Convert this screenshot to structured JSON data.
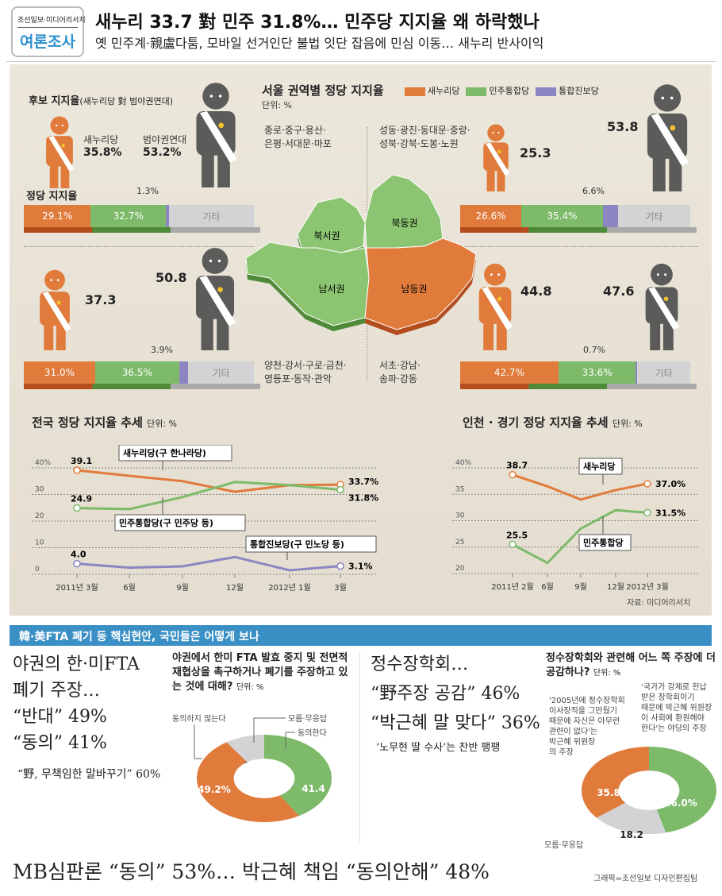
{
  "header": {
    "logo_top": "조선일보·미디어리서치",
    "logo_main": "여론조사",
    "title": "새누리 33.7 對 민주 31.8%… 민주당 지지율 왜 하락했나",
    "subtitle": "옛 민주계·親盧다툼, 모바일 선거인단 불법   잇단 잡음에 민심 이동… 새누리 반사이익"
  },
  "colors": {
    "saenuri": "#e07b3c",
    "minju": "#7dba6a",
    "jinbo": "#8b86c2",
    "other": "#d3d3d6",
    "figure_dark": "#5b5b59"
  },
  "candidate": {
    "title": "후보 지지율",
    "title_note": "(새누리당 對 범야권연대)",
    "saenuri_label": "새누리당",
    "saenuri_value": "35.8%",
    "opp_label": "범야권연대",
    "opp_value": "53.2%",
    "party_title": "정당 지지율"
  },
  "seoul": {
    "title": "서울 권역별 정당 지지율",
    "unit": "단위: %",
    "legend": [
      {
        "label": "새누리당"
      },
      {
        "label": "민주통합당"
      },
      {
        "label": "통합진보당"
      }
    ],
    "regions": {
      "nw": {
        "name": "북서권",
        "districts": [
          "종로·중구·용산·",
          "은평·서대문·마포"
        ],
        "saenuri_cand": "",
        "opp_cand": ""
      },
      "ne": {
        "name": "북동권",
        "districts": [
          "성동·광진·동대문·중랑·",
          "성북·강북·도봉·노원"
        ],
        "saenuri_cand": "25.3",
        "opp_cand": "53.8"
      },
      "sw": {
        "name": "남서권",
        "districts": [
          "양천·강서·구로·금천·",
          "영등포·동작·관악"
        ],
        "saenuri_cand": "37.3",
        "opp_cand": "50.8"
      },
      "se": {
        "name": "남동권",
        "districts": [
          "서초·강남·",
          "송파·강동"
        ],
        "saenuri_cand": "44.8",
        "opp_cand": "47.6"
      }
    },
    "bars": {
      "nw": {
        "saenuri": 29.1,
        "minju": 32.7,
        "jinbo": 1.3,
        "labels": [
          "29.1%",
          "32.7%",
          "1.3%",
          "기타"
        ]
      },
      "ne": {
        "saenuri": 26.6,
        "minju": 35.4,
        "jinbo": 6.6,
        "labels": [
          "26.6%",
          "35.4%",
          "6.6%",
          "기타"
        ]
      },
      "sw": {
        "saenuri": 31.0,
        "minju": 36.5,
        "jinbo": 3.9,
        "labels": [
          "31.0%",
          "36.5%",
          "3.9%",
          "기타"
        ]
      },
      "se": {
        "saenuri": 42.7,
        "minju": 33.6,
        "jinbo": 0.7,
        "labels": [
          "42.7%",
          "33.6%",
          "0.7%",
          "기타"
        ]
      }
    }
  },
  "chart_data": [
    {
      "type": "line",
      "title": "전국 정당 지지율 추세",
      "unit": "단위: %",
      "categories": [
        "2011년 3월",
        "6월",
        "9월",
        "12월",
        "2012년 1월",
        "3월"
      ],
      "ylim": [
        0,
        40
      ],
      "yticks": [
        "40%",
        "30",
        "20",
        "10",
        "0"
      ],
      "series": [
        {
          "name": "새누리당(구 한나라당)",
          "color": "#e07b3c",
          "values": [
            39.1,
            37.0,
            35.0,
            31.0,
            33.5,
            33.7
          ],
          "start_label": "39.1",
          "end_label": "33.7%"
        },
        {
          "name": "민주통합당(구 민주당 등)",
          "color": "#7dba6a",
          "values": [
            24.9,
            24.5,
            29.0,
            34.7,
            33.5,
            31.8
          ],
          "start_label": "24.9",
          "end_label": "31.8%"
        },
        {
          "name": "통합진보당(구 민노당 등)",
          "color": "#8b86c2",
          "values": [
            4.0,
            2.5,
            3.0,
            6.5,
            1.5,
            3.1
          ],
          "start_label": "4.0",
          "end_label": "3.1%"
        }
      ]
    },
    {
      "type": "line",
      "title": "인천 · 경기 정당 지지율 추세",
      "unit": "단위: %",
      "categories": [
        "2011년 2월",
        "6월",
        "9월",
        "12월",
        "2012년 3월"
      ],
      "ylim": [
        20,
        40
      ],
      "yticks": [
        "40%",
        "35",
        "30",
        "25",
        "20"
      ],
      "source": "자료: 미디어리서치",
      "series": [
        {
          "name": "새누리당",
          "color": "#e07b3c",
          "values": [
            38.7,
            36.5,
            34.0,
            35.8,
            37.0
          ],
          "start_label": "38.7",
          "end_label": "37.0%"
        },
        {
          "name": "민주통합당",
          "color": "#7dba6a",
          "values": [
            25.5,
            22.0,
            28.5,
            32.0,
            31.5
          ],
          "start_label": "25.5",
          "end_label": "31.5%"
        }
      ]
    },
    {
      "type": "pie",
      "title": "야권에서 한미 FTA 발효 중지 및 전면적 재협상을 촉구하거나 폐기를 주장하고 있는 것에 대해?",
      "unit": "단위: %",
      "slices": [
        {
          "label": "동의한다",
          "value": 41.4,
          "text": "41.4",
          "color": "#7dba6a"
        },
        {
          "label": "동의하지 않는다",
          "value": 49.2,
          "text": "49.2%",
          "color": "#e07b3c"
        },
        {
          "label": "모름·무응답",
          "value": 9.4,
          "text": "9.4",
          "color": "#d3d3d6"
        }
      ]
    },
    {
      "type": "pie",
      "title": "정수장학회와 관련해 어느 쪽 주장에 더 공감하나?",
      "unit": "단위: %",
      "slices": [
        {
          "label": "'국가가 강제로 헌납 받은 장학회이기 때문에 박근혜 위원장이 사회에 환원해야 한다'는 야당의 주장",
          "value": 46.0,
          "text": "46.0%",
          "color": "#7dba6a"
        },
        {
          "label": "모름·무응답",
          "value": 18.2,
          "text": "18.2",
          "color": "#d3d3d6"
        },
        {
          "label": "'2005년에 정수장학회 이사장직을 그만뒀기 때문에 자신은 아무런 관련이 없다'는 박근혜 위원장의 주장",
          "value": 35.8,
          "text": "35.8",
          "color": "#e07b3c"
        }
      ]
    }
  ],
  "bottom": {
    "section_title": "韓·美FTA 폐기 등 핵심현안, 국민들은 어떻게 보나",
    "fta_head": [
      "야권의 한·미FTA",
      "폐기 주장…",
      "“반대” 49%",
      "“동의” 41%"
    ],
    "fta_sub": "“野, 무책임한 말바꾸기” 60%",
    "jsu_head": [
      "정수장학회…",
      "“野주장 공감” 46%",
      "“박근혜 말 맞다” 36%"
    ],
    "jsu_sub": "‘노무현 딸 수사’는 찬반 팽팽",
    "mb_head": "MB심판론 “동의” 53%… 박근혜 책임 “동의안해” 48%",
    "credit": "그래픽=조선일보 디자인편집팀",
    "pie2_labels": {
      "green": [
        "'국가가 강제로 헌납",
        "받은 장학회이기",
        "때문에 박근혜 위원장",
        "이 사회에 환원해야",
        "한다'는 야당의 주장"
      ],
      "orange": [
        "'2005년에 정수장학회",
        "이사장직을 그만뒀기",
        "때문에 자신은 아무런",
        "관련이 없다'는",
        "박근혜 위원장",
        "의 주장"
      ],
      "gray": "모름·무응답"
    }
  }
}
